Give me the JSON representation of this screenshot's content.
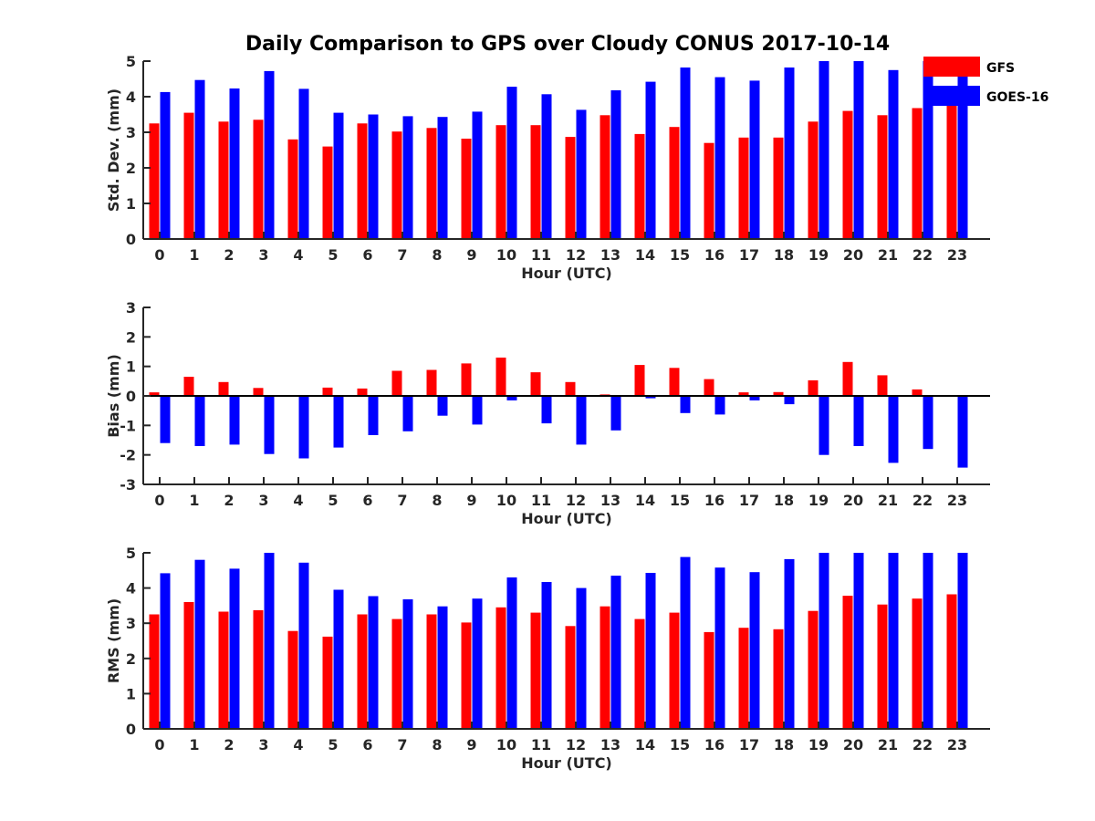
{
  "chart_data": {
    "title": "Daily Comparison to GPS over Cloudy CONUS 2017-10-14",
    "legend": {
      "placement": "top-right, outside axes",
      "entries": [
        {
          "label": "GFS",
          "color": "#ff0000"
        },
        {
          "label": "GOES-16",
          "color": "#0000ff"
        }
      ]
    },
    "panels": [
      {
        "type": "bar",
        "xlabel": "Hour (UTC)",
        "ylabel": "Std. Dev. (mm)",
        "ylim": [
          0,
          5
        ],
        "yticks": [
          0,
          1,
          2,
          3,
          4,
          5
        ],
        "zero_line": false,
        "categories": [
          "0",
          "1",
          "2",
          "3",
          "4",
          "5",
          "6",
          "7",
          "8",
          "9",
          "10",
          "11",
          "12",
          "13",
          "14",
          "15",
          "16",
          "17",
          "18",
          "19",
          "20",
          "21",
          "22",
          "23"
        ],
        "series": [
          {
            "name": "GFS",
            "color": "#ff0000",
            "values": [
              3.25,
              3.55,
              3.3,
              3.35,
              2.8,
              2.6,
              3.25,
              3.02,
              3.12,
              2.82,
              3.2,
              3.2,
              2.87,
              3.48,
              2.95,
              3.15,
              2.7,
              2.85,
              2.85,
              3.3,
              3.6,
              3.48,
              3.68,
              3.8
            ]
          },
          {
            "name": "GOES-16",
            "color": "#0000ff",
            "values": [
              4.13,
              4.47,
              4.23,
              4.72,
              4.22,
              3.55,
              3.5,
              3.45,
              3.43,
              3.58,
              4.28,
              4.07,
              3.63,
              4.18,
              4.42,
              4.82,
              4.55,
              4.45,
              4.82,
              5.0,
              5.0,
              4.75,
              5.0,
              5.0
            ]
          }
        ]
      },
      {
        "type": "bar",
        "xlabel": "Hour (UTC)",
        "ylabel": "Bias (mm)",
        "ylim": [
          -3,
          3
        ],
        "yticks": [
          -3,
          -2,
          -1,
          0,
          1,
          2,
          3
        ],
        "zero_line": true,
        "categories": [
          "0",
          "1",
          "2",
          "3",
          "4",
          "5",
          "6",
          "7",
          "8",
          "9",
          "10",
          "11",
          "12",
          "13",
          "14",
          "15",
          "16",
          "17",
          "18",
          "19",
          "20",
          "21",
          "22",
          "23"
        ],
        "series": [
          {
            "name": "GFS",
            "color": "#ff0000",
            "values": [
              0.12,
              0.65,
              0.47,
              0.27,
              0.0,
              0.28,
              0.25,
              0.85,
              0.88,
              1.1,
              1.3,
              0.8,
              0.47,
              0.05,
              1.05,
              0.95,
              0.57,
              0.12,
              0.13,
              0.53,
              1.15,
              0.7,
              0.22,
              0.0
            ]
          },
          {
            "name": "GOES-16",
            "color": "#0000ff",
            "values": [
              -1.6,
              -1.7,
              -1.65,
              -1.97,
              -2.12,
              -1.75,
              -1.33,
              -1.2,
              -0.67,
              -0.97,
              -0.15,
              -0.93,
              -1.65,
              -1.17,
              -0.08,
              -0.58,
              -0.63,
              -0.15,
              -0.28,
              -2.0,
              -1.7,
              -2.27,
              -1.8,
              -2.43
            ]
          }
        ]
      },
      {
        "type": "bar",
        "xlabel": "Hour (UTC)",
        "ylabel": "RMS (mm)",
        "ylim": [
          0,
          5
        ],
        "yticks": [
          0,
          1,
          2,
          3,
          4,
          5
        ],
        "zero_line": false,
        "categories": [
          "0",
          "1",
          "2",
          "3",
          "4",
          "5",
          "6",
          "7",
          "8",
          "9",
          "10",
          "11",
          "12",
          "13",
          "14",
          "15",
          "16",
          "17",
          "18",
          "19",
          "20",
          "21",
          "22",
          "23"
        ],
        "series": [
          {
            "name": "GFS",
            "color": "#ff0000",
            "values": [
              3.25,
              3.6,
              3.33,
              3.37,
              2.78,
              2.62,
              3.25,
              3.12,
              3.25,
              3.02,
              3.45,
              3.3,
              2.92,
              3.48,
              3.12,
              3.3,
              2.75,
              2.87,
              2.83,
              3.35,
              3.78,
              3.53,
              3.7,
              3.82
            ]
          },
          {
            "name": "GOES-16",
            "color": "#0000ff",
            "values": [
              4.42,
              4.8,
              4.55,
              5.0,
              4.72,
              3.95,
              3.77,
              3.68,
              3.48,
              3.7,
              4.3,
              4.17,
              4.0,
              4.35,
              4.43,
              4.88,
              4.58,
              4.45,
              4.82,
              5.0,
              5.0,
              5.0,
              5.0,
              5.0
            ]
          }
        ]
      }
    ]
  }
}
